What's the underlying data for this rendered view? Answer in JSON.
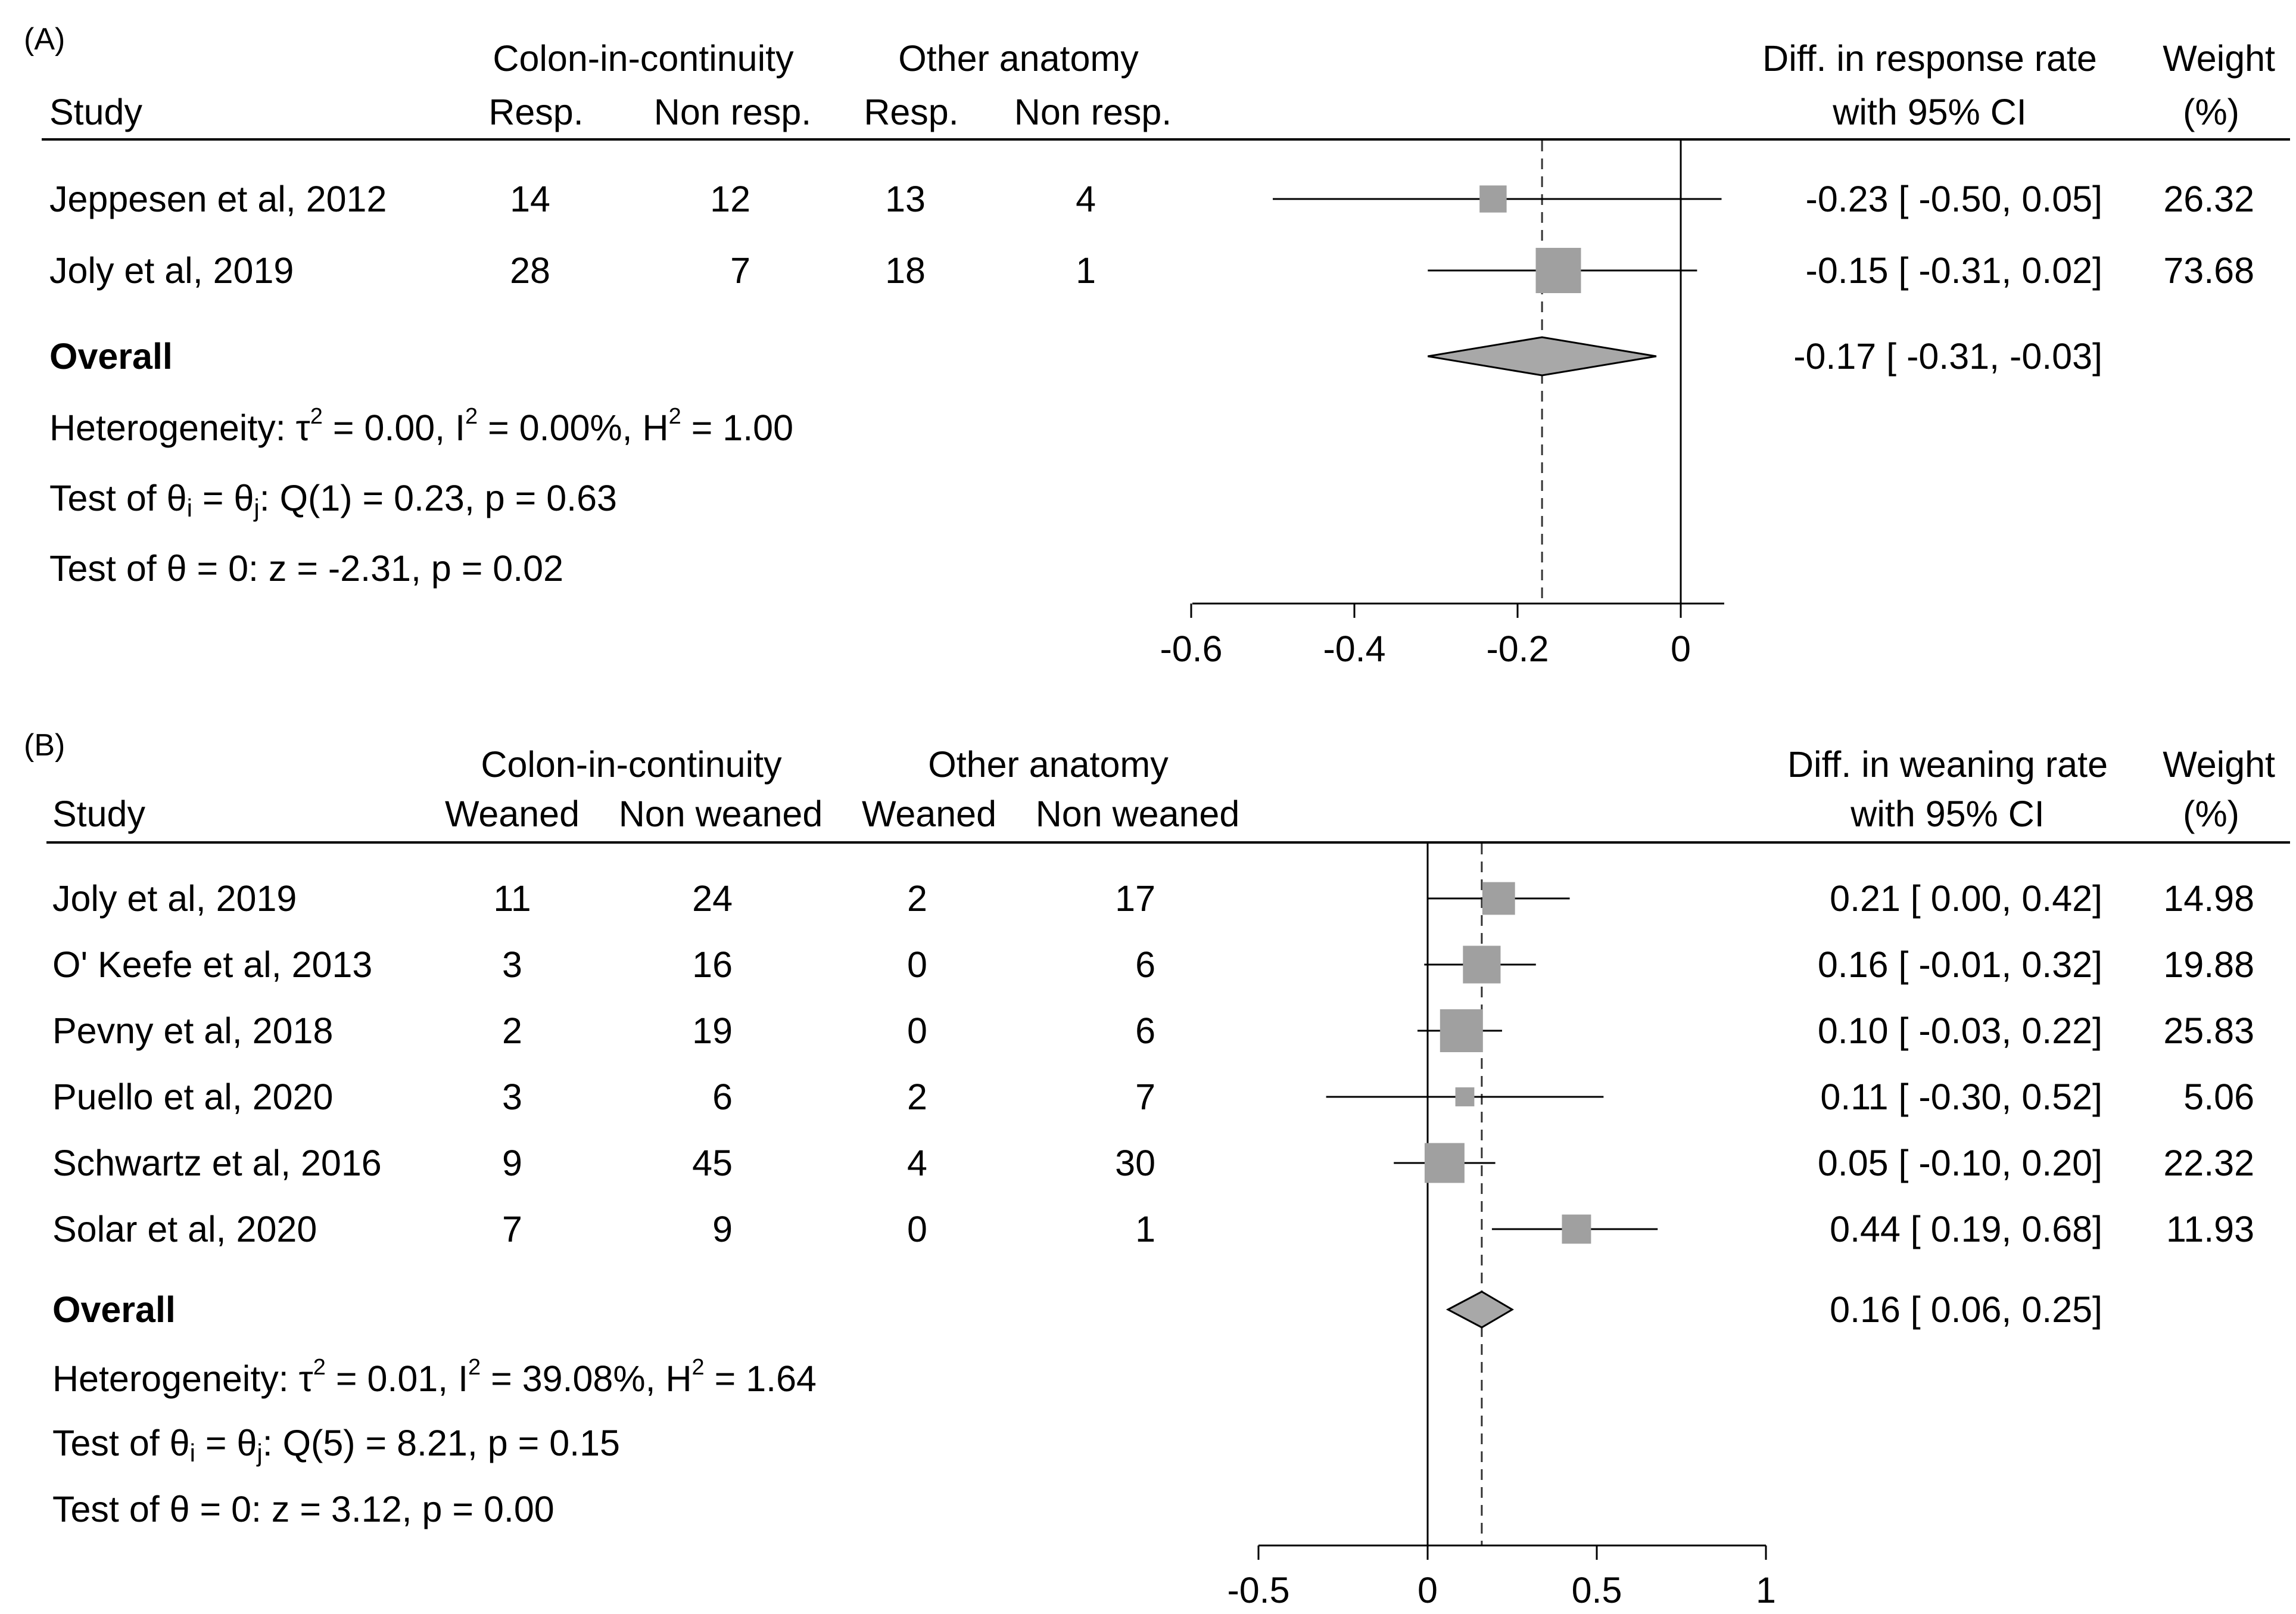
{
  "chart_data": [
    {
      "type": "forest",
      "panel_label": "(A)",
      "headers": {
        "group1": "Colon-in-continuity",
        "group2": "Other anatomy",
        "study": "Study",
        "g1_pos": "Resp.",
        "g1_neg": "Non resp.",
        "g2_pos": "Resp.",
        "g2_neg": "Non resp.",
        "effect_line1": "Diff. in response rate",
        "effect_line2": "with 95% CI",
        "weight_line1": "Weight",
        "weight_line2": "(%)"
      },
      "studies": [
        {
          "name": "Jeppesen et al, 2012",
          "g1_pos": "14",
          "g1_neg": "12",
          "g2_pos": "13",
          "g2_neg": "4",
          "ci_text": "-0.23 [ -0.50,  0.05]",
          "weight_text": "26.32",
          "est": -0.23,
          "lo": -0.5,
          "hi": 0.05,
          "weight": 26.32
        },
        {
          "name": "Joly et al, 2019",
          "g1_pos": "28",
          "g1_neg": "7",
          "g2_pos": "18",
          "g2_neg": "1",
          "ci_text": "-0.15 [ -0.31,  0.02]",
          "weight_text": "73.68",
          "est": -0.15,
          "lo": -0.31,
          "hi": 0.02,
          "weight": 73.68
        }
      ],
      "overall": {
        "label": "Overall",
        "ci_text": "-0.17 [ -0.31,  -0.03]",
        "est": -0.17,
        "lo": -0.31,
        "hi": -0.03
      },
      "stats": {
        "het_prefix": "Heterogeneity: τ",
        "het_t2": " = 0.00, I",
        "het_i2": " = 0.00%, H",
        "het_h2": " = 1.00",
        "q_prefix": "Test of θ",
        "q_sub_i": "i",
        "q_mid": " = θ",
        "q_sub_j": "j",
        "q_rest": ": Q(1) = 0.23, p = 0.63",
        "z_text": "Test of θ = 0: z = -2.31, p = 0.02"
      },
      "axis": {
        "ticks": [
          -0.6,
          -0.4,
          -0.2,
          0
        ],
        "tick_labels": [
          "-0.6",
          "-0.4",
          "-0.2",
          "0"
        ],
        "xlim": [
          -0.6,
          0.05
        ],
        "null_line": 0
      }
    },
    {
      "type": "forest",
      "panel_label": "(B)",
      "headers": {
        "group1": "Colon-in-continuity",
        "group2": "Other anatomy",
        "study": "Study",
        "g1_pos": "Weaned",
        "g1_neg": "Non weaned",
        "g2_pos": "Weaned",
        "g2_neg": "Non weaned",
        "effect_line1": "Diff. in weaning rate",
        "effect_line2": "with 95% CI",
        "weight_line1": "Weight",
        "weight_line2": "(%)"
      },
      "studies": [
        {
          "name": "Joly et al, 2019",
          "g1_pos": "11",
          "g1_neg": "24",
          "g2_pos": "2",
          "g2_neg": "17",
          "ci_text": "0.21 [  0.00,  0.42]",
          "weight_text": "14.98",
          "est": 0.21,
          "lo": 0.0,
          "hi": 0.42,
          "weight": 14.98
        },
        {
          "name": "O' Keefe et al, 2013",
          "g1_pos": "3",
          "g1_neg": "16",
          "g2_pos": "0",
          "g2_neg": "6",
          "ci_text": "0.16 [ -0.01,  0.32]",
          "weight_text": "19.88",
          "est": 0.16,
          "lo": -0.01,
          "hi": 0.32,
          "weight": 19.88
        },
        {
          "name": "Pevny et al, 2018",
          "g1_pos": "2",
          "g1_neg": "19",
          "g2_pos": "0",
          "g2_neg": "6",
          "ci_text": "0.10 [ -0.03,  0.22]",
          "weight_text": "25.83",
          "est": 0.1,
          "lo": -0.03,
          "hi": 0.22,
          "weight": 25.83
        },
        {
          "name": "Puello et al, 2020",
          "g1_pos": "3",
          "g1_neg": "6",
          "g2_pos": "2",
          "g2_neg": "7",
          "ci_text": "0.11 [ -0.30,  0.52]",
          "weight_text": "5.06",
          "est": 0.11,
          "lo": -0.3,
          "hi": 0.52,
          "weight": 5.06
        },
        {
          "name": "Schwartz et al, 2016",
          "g1_pos": "9",
          "g1_neg": "45",
          "g2_pos": "4",
          "g2_neg": "30",
          "ci_text": "0.05 [ -0.10,  0.20]",
          "weight_text": "22.32",
          "est": 0.05,
          "lo": -0.1,
          "hi": 0.2,
          "weight": 22.32
        },
        {
          "name": "Solar et al, 2020",
          "g1_pos": "7",
          "g1_neg": "9",
          "g2_pos": "0",
          "g2_neg": "1",
          "ci_text": "0.44 [  0.19,  0.68]",
          "weight_text": "11.93",
          "est": 0.44,
          "lo": 0.19,
          "hi": 0.68,
          "weight": 11.93
        }
      ],
      "overall": {
        "label": "Overall",
        "ci_text": "0.16 [  0.06,  0.25]",
        "est": 0.16,
        "lo": 0.06,
        "hi": 0.25
      },
      "stats": {
        "het_prefix": "Heterogeneity: τ",
        "het_t2": " = 0.01, I",
        "het_i2": " = 39.08%, H",
        "het_h2": " = 1.64",
        "q_prefix": "Test of θ",
        "q_sub_i": "i",
        "q_mid": " = θ",
        "q_sub_j": "j",
        "q_rest": ": Q(5) = 8.21, p = 0.15",
        "z_text": "Test of θ = 0: z = 3.12, p = 0.00"
      },
      "axis": {
        "ticks": [
          -0.5,
          0,
          0.5,
          1
        ],
        "tick_labels": [
          "-0.5",
          "0",
          "0.5",
          "1"
        ],
        "xlim": [
          -0.5,
          1
        ],
        "null_line": 0
      }
    }
  ],
  "colors": {
    "marker": "#a0a0a0",
    "diamond": "#a8a8a8",
    "line": "#000000"
  }
}
